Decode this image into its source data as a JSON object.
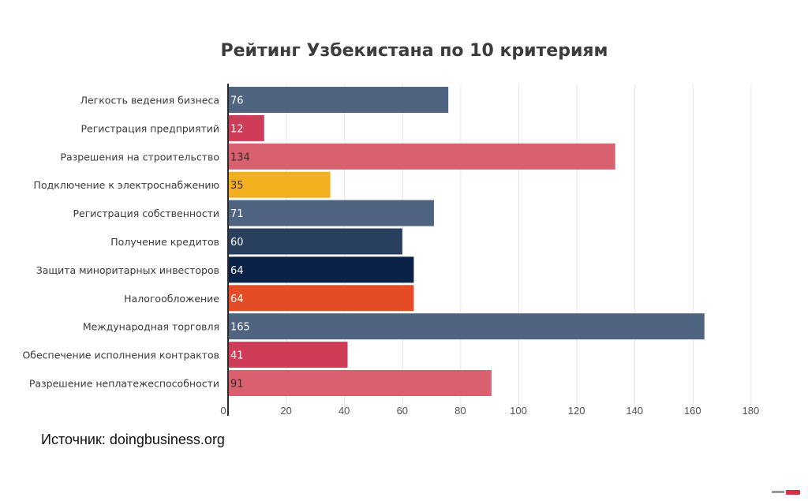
{
  "chart_data": {
    "type": "bar",
    "orientation": "horizontal",
    "title": "Рейтинг Узбекистана по 10 критериям",
    "xlabel": "",
    "ylabel": "",
    "xlim": [
      0,
      180
    ],
    "x_ticks": [
      0,
      20,
      40,
      60,
      80,
      100,
      120,
      140,
      160,
      180
    ],
    "grid": "vertical",
    "legend": "none",
    "categories": [
      "Легкость ведения бизнеса",
      "Регистрация предприятий",
      "Разрешения на строительство",
      "Подключение к электроснабжению",
      "Регистрация собственности",
      "Получение кредитов",
      "Защита миноритарных инвесторов",
      "Налогообложение",
      "Международная торговля",
      "Обеспечение исполнения контрактов",
      "Разрешение неплатежеспособности"
    ],
    "values": [
      76,
      12,
      134,
      35,
      71,
      60,
      64,
      64,
      165,
      41,
      91
    ],
    "bar_colors": [
      "#4f6480",
      "#cf3c58",
      "#d9606f",
      "#f2b01e",
      "#4f6480",
      "#283f5e",
      "#0a2148",
      "#e34c26",
      "#4f6480",
      "#cf3c58",
      "#d9606f"
    ],
    "label_colors": [
      "#ffffff",
      "#ffffff",
      "#3a2a2a",
      "#3a2a2a",
      "#ffffff",
      "#ffffff",
      "#ffffff",
      "#ffffff",
      "#ffffff",
      "#ffffff",
      "#3a2a2a"
    ]
  },
  "source_text": "Источник: doingbusiness.org"
}
